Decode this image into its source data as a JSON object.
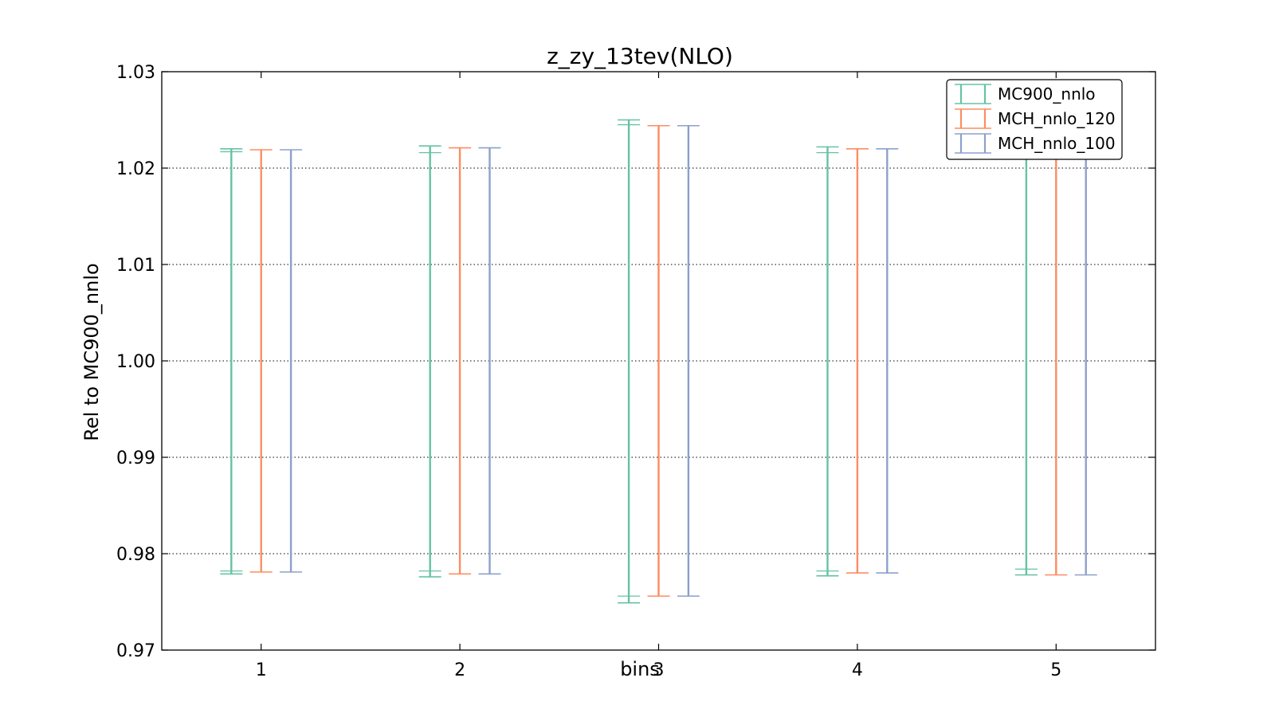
{
  "chart_data": {
    "type": "errorbar",
    "title": "z_zy_13tev(NLO)",
    "xlabel": "bins",
    "ylabel": "Rel to MC900_nnlo",
    "xlim": [
      0.5,
      5.5
    ],
    "ylim": [
      0.97,
      1.03
    ],
    "x_ticks": [
      "1",
      "2",
      "3",
      "4",
      "5"
    ],
    "y_ticks": [
      "0.97",
      "0.98",
      "0.99",
      "1.00",
      "1.01",
      "1.02",
      "1.03"
    ],
    "grid": "y-dotted",
    "legend_position": "top-right",
    "series": [
      {
        "name": "MC900_nnlo",
        "color": "#66c2a5",
        "x": [
          1,
          2,
          3,
          4,
          5
        ],
        "upper": [
          1.022,
          1.0223,
          1.025,
          1.0222,
          1.022
        ],
        "lower": [
          0.9779,
          0.9776,
          0.9749,
          0.9777,
          0.9778
        ],
        "inner_upper": [
          1.0217,
          1.0216,
          1.0245,
          1.0216,
          1.0215
        ],
        "inner_lower": [
          0.9782,
          0.9782,
          0.9756,
          0.9782,
          0.9784
        ]
      },
      {
        "name": "MCH_nnlo_120",
        "color": "#fc8d62",
        "x": [
          1,
          2,
          3,
          4,
          5
        ],
        "upper": [
          1.0219,
          1.0221,
          1.0244,
          1.022,
          1.022
        ],
        "lower": [
          0.9781,
          0.9779,
          0.9756,
          0.978,
          0.9778
        ]
      },
      {
        "name": "MCH_nnlo_100",
        "color": "#8da0cb",
        "x": [
          1,
          2,
          3,
          4,
          5
        ],
        "upper": [
          1.0219,
          1.0221,
          1.0244,
          1.022,
          1.022
        ],
        "lower": [
          0.9781,
          0.9779,
          0.9756,
          0.978,
          0.9778
        ]
      }
    ]
  }
}
